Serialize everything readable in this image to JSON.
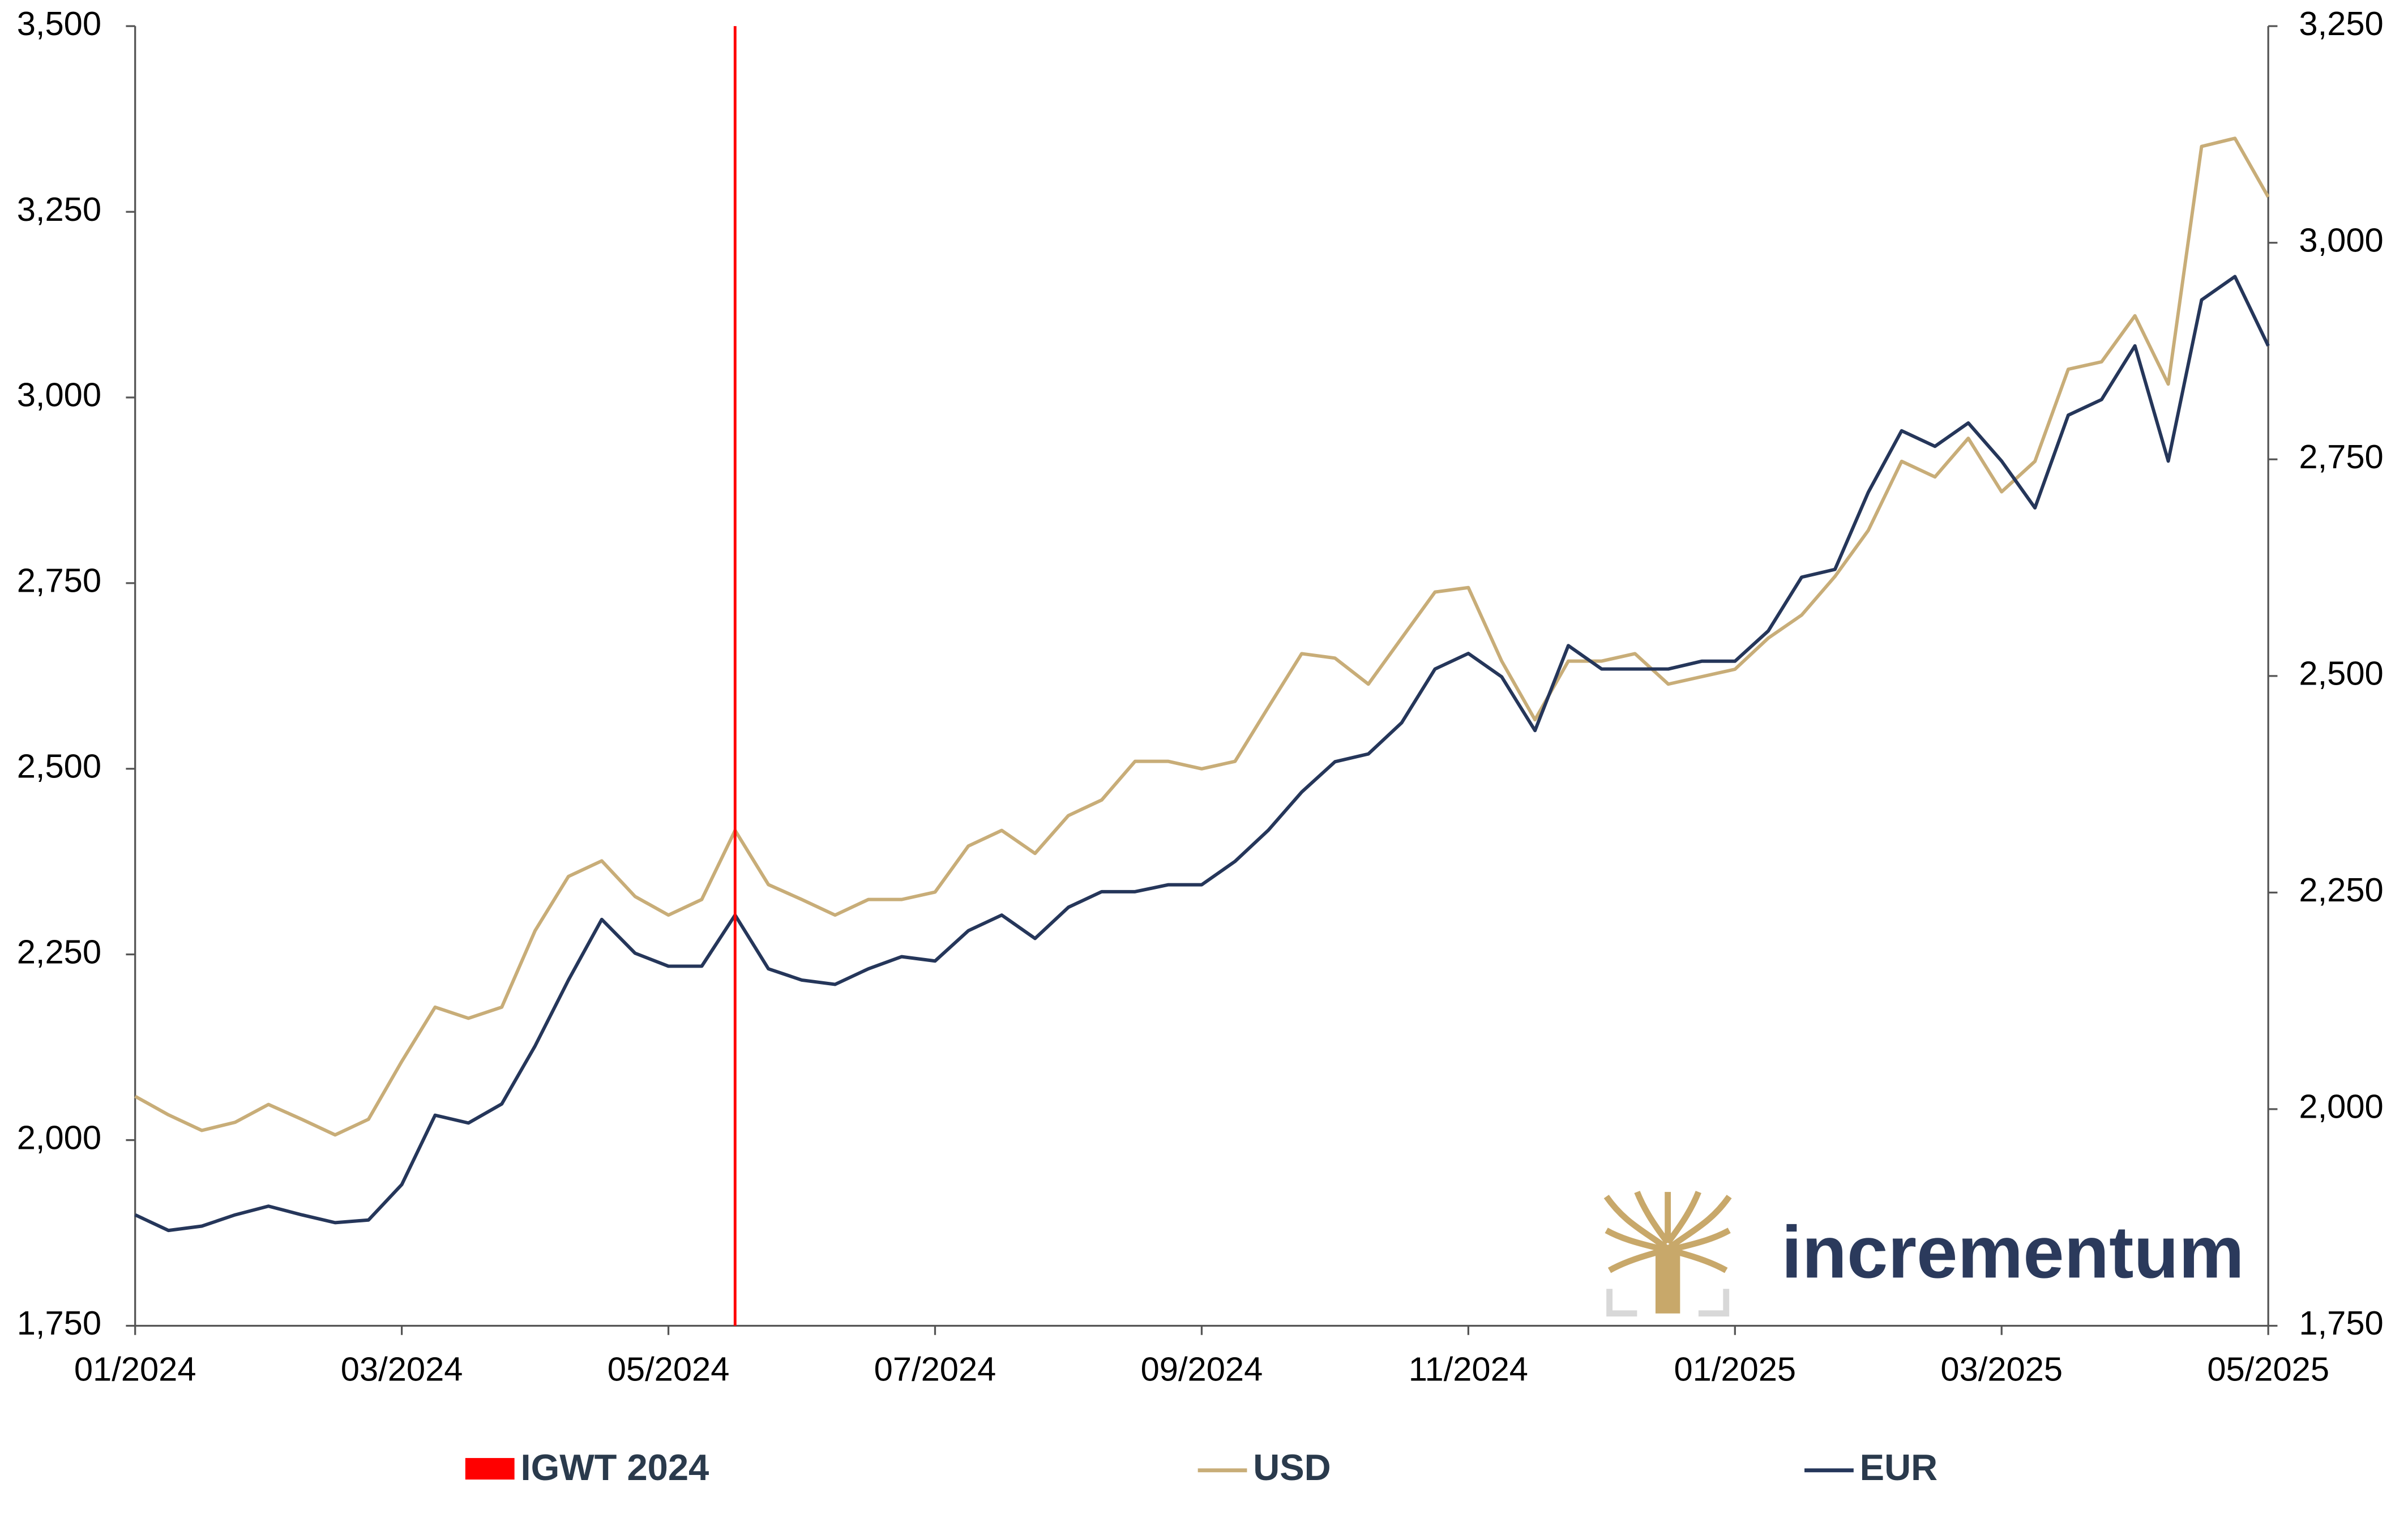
{
  "chart_data": {
    "type": "line",
    "x": [
      0,
      0.25,
      0.5,
      0.75,
      1,
      1.25,
      1.5,
      1.75,
      2,
      2.25,
      2.5,
      2.75,
      3,
      3.25,
      3.5,
      3.75,
      4,
      4.25,
      4.5,
      4.75,
      5,
      5.25,
      5.5,
      5.75,
      6,
      6.25,
      6.5,
      6.75,
      7,
      7.25,
      7.5,
      7.75,
      8,
      8.25,
      8.5,
      8.75,
      9,
      9.25,
      9.5,
      9.75,
      10,
      10.25,
      10.5,
      10.75,
      11,
      11.25,
      11.5,
      11.75,
      12,
      12.25,
      12.5,
      12.75,
      13,
      13.25,
      13.5,
      13.75,
      14,
      14.25,
      14.5,
      14.75,
      15,
      15.25,
      15.5,
      15.75,
      16
    ],
    "xlim": [
      0,
      16
    ],
    "xticks": [
      {
        "value": 0,
        "label": "01/2024"
      },
      {
        "value": 2,
        "label": "03/2024"
      },
      {
        "value": 4,
        "label": "05/2024"
      },
      {
        "value": 6,
        "label": "07/2024"
      },
      {
        "value": 8,
        "label": "09/2024"
      },
      {
        "value": 10,
        "label": "11/2024"
      },
      {
        "value": 12,
        "label": "01/2025"
      },
      {
        "value": 14,
        "label": "03/2025"
      },
      {
        "value": 16,
        "label": "05/2025"
      }
    ],
    "ylim": [
      1750,
      3500
    ],
    "yticks": [
      {
        "value": 1750,
        "label": "1,750"
      },
      {
        "value": 2000,
        "label": "2,000"
      },
      {
        "value": 2250,
        "label": "2,250"
      },
      {
        "value": 2500,
        "label": "2,500"
      },
      {
        "value": 2750,
        "label": "2,750"
      },
      {
        "value": 3000,
        "label": "3,000"
      },
      {
        "value": 3250,
        "label": "3,250"
      },
      {
        "value": 3500,
        "label": "3,500"
      }
    ],
    "y2lim": [
      1750,
      3250
    ],
    "y2ticks": [
      {
        "value": 1750,
        "label": "1,750"
      },
      {
        "value": 2000,
        "label": "2,000"
      },
      {
        "value": 2250,
        "label": "2,250"
      },
      {
        "value": 2500,
        "label": "2,500"
      },
      {
        "value": 2750,
        "label": "2,750"
      },
      {
        "value": 3000,
        "label": "3,000"
      },
      {
        "value": 3250,
        "label": "3,250"
      }
    ],
    "markers": [
      {
        "name": "IGWT 2024",
        "color": "#ff0000",
        "x": 4.5
      }
    ],
    "series": [
      {
        "name": "USD",
        "color": "#c8ad78",
        "values": [
          2059,
          2034,
          2013,
          2024,
          2048,
          2028,
          2007,
          2028,
          2106,
          2179,
          2164,
          2179,
          2282,
          2355,
          2376,
          2328,
          2303,
          2324,
          2417,
          2344,
          2324,
          2303,
          2324,
          2324,
          2334,
          2396,
          2417,
          2386,
          2437,
          2458,
          2510,
          2510,
          2500,
          2510,
          2583,
          2655,
          2649,
          2614,
          2676,
          2738,
          2744,
          2645,
          2566,
          2645,
          2645,
          2655,
          2614,
          2624,
          2634,
          2676,
          2707,
          2759,
          2821,
          2914,
          2893,
          2945,
          2873,
          2914,
          3038,
          3048,
          3110,
          3018,
          3338,
          3349,
          3270
        ]
      },
      {
        "name": "EUR",
        "color": "#25365a",
        "axis": "y2",
        "values": [
          1878,
          1860,
          1865,
          1878,
          1888,
          1878,
          1869,
          1872,
          1913,
          1993,
          1984,
          2006,
          2073,
          2149,
          2219,
          2180,
          2165,
          2165,
          2224,
          2162,
          2149,
          2144,
          2162,
          2176,
          2171,
          2206,
          2224,
          2197,
          2233,
          2251,
          2251,
          2259,
          2259,
          2286,
          2322,
          2366,
          2401,
          2410,
          2446,
          2508,
          2526,
          2499,
          2437,
          2535,
          2508,
          2508,
          2508,
          2517,
          2517,
          2552,
          2614,
          2623,
          2712,
          2783,
          2765,
          2792,
          2748,
          2694,
          2801,
          2819,
          2881,
          2748,
          2934,
          2961,
          2881
        ]
      }
    ],
    "logo_text": "incrementum"
  }
}
